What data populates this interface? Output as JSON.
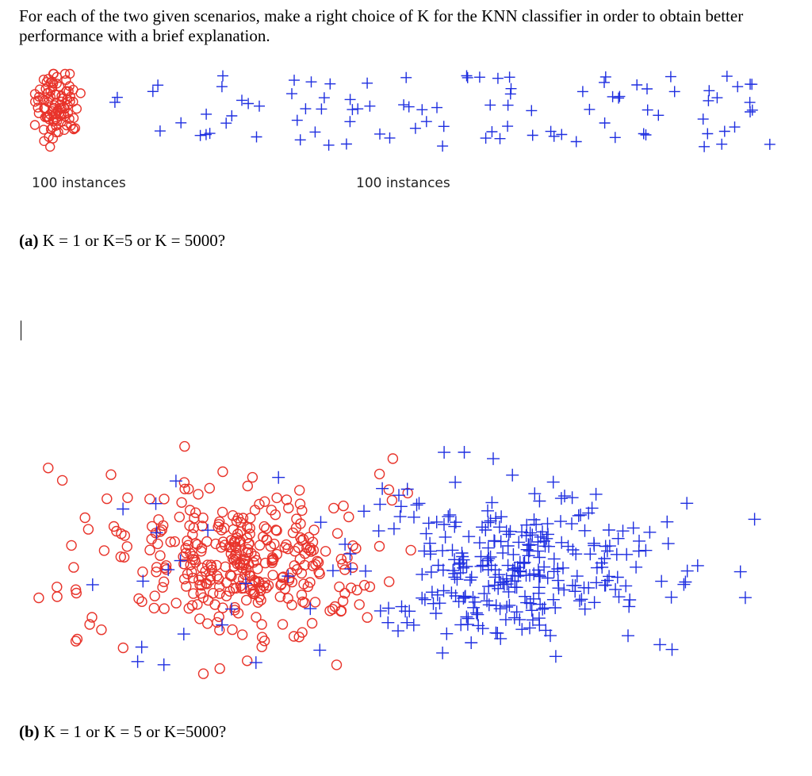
{
  "prompt": "For each of the two given scenarios, make a right choice of K for the KNN classifier in order to obtain better performance with a brief explanation.",
  "scenario_a": {
    "left_caption": "100 instances",
    "right_caption": "100 instances",
    "question_label": "(a)",
    "question_text": " K = 1 or K=5 or K = 5000?"
  },
  "scenario_b": {
    "question_label": "(b)",
    "question_text": " K = 1 or K = 5 or K=5000?"
  },
  "colors": {
    "circle_class": "#e8332a",
    "plus_class": "#1f2fe0"
  },
  "chart_data": [
    {
      "type": "scatter",
      "title": "",
      "series": [
        {
          "marker": "circle",
          "count": 100
        },
        {
          "marker": "plus",
          "count": 100
        }
      ],
      "annotations": [
        "100 instances",
        "100 instances"
      ]
    },
    {
      "type": "scatter",
      "title": "",
      "series": [
        {
          "marker": "circle",
          "count": 360
        },
        {
          "marker": "plus",
          "count": 320
        }
      ]
    }
  ]
}
